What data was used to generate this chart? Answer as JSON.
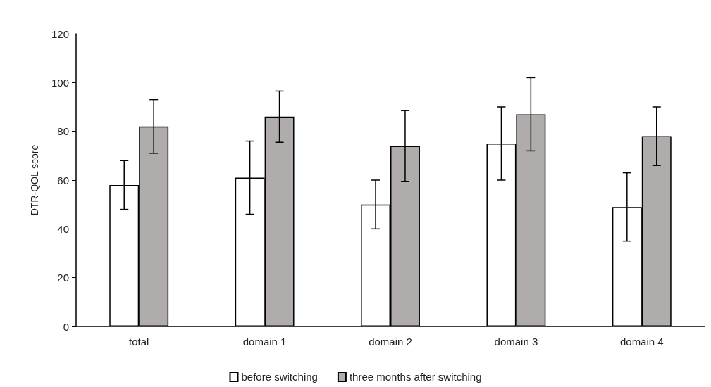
{
  "chart_data": {
    "type": "bar",
    "ylabel": "DTR-QOL score",
    "categories": [
      "total",
      "domain 1",
      "domain 2",
      "domain 3",
      "domain 4"
    ],
    "series": [
      {
        "name": "before switching",
        "color": "#ffffff",
        "values": [
          58,
          61,
          50,
          75,
          49
        ],
        "errors": [
          10,
          15,
          10,
          15,
          14
        ]
      },
      {
        "name": "three months after switching",
        "color": "#b0acab",
        "values": [
          82,
          86,
          74,
          87,
          78
        ],
        "errors": [
          11,
          10.5,
          14.5,
          15,
          12
        ]
      }
    ],
    "ylim": [
      0,
      120
    ],
    "yticks": [
      0,
      20,
      40,
      60,
      80,
      100,
      120
    ],
    "grid": false,
    "legend": "bottom"
  }
}
